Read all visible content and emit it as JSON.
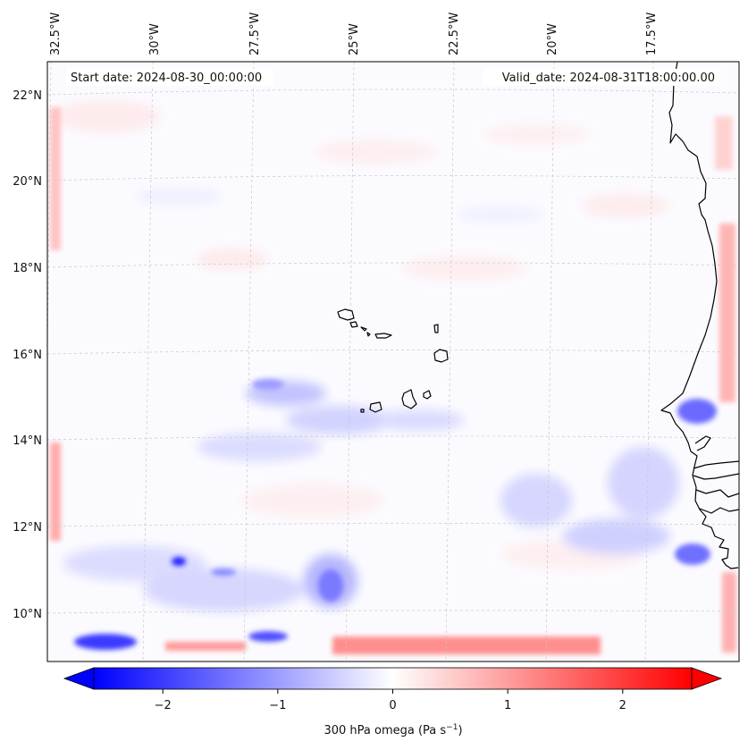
{
  "header": {
    "start_label": "Start date: 2024-08-30_00:00:00",
    "valid_label": "Valid_date: 2024-08-31T18:00:00.00"
  },
  "longitude_labels": [
    "32.5°W",
    "30°W",
    "27.5°W",
    "25°W",
    "22.5°W",
    "20°W",
    "17.5°W"
  ],
  "latitude_labels": [
    "22°N",
    "20°N",
    "18°N",
    "16°N",
    "14°N",
    "12°N",
    "10°N"
  ],
  "colorbar": {
    "label": "300 hPa omega (Pa s",
    "label_sup": "−1",
    "label_end": ")",
    "range": [
      -2.6,
      2.6
    ],
    "ticks": [
      "−2",
      "−1",
      "0",
      "1",
      "2"
    ],
    "tick_values": [
      -2,
      -1,
      0,
      1,
      2
    ],
    "negative_color": "#0000ff",
    "zero_color": "#ffffff",
    "positive_color": "#ff0000"
  },
  "map_style": {
    "coastline_color": "#000000",
    "gridline_color": "#c8c8c8"
  }
}
